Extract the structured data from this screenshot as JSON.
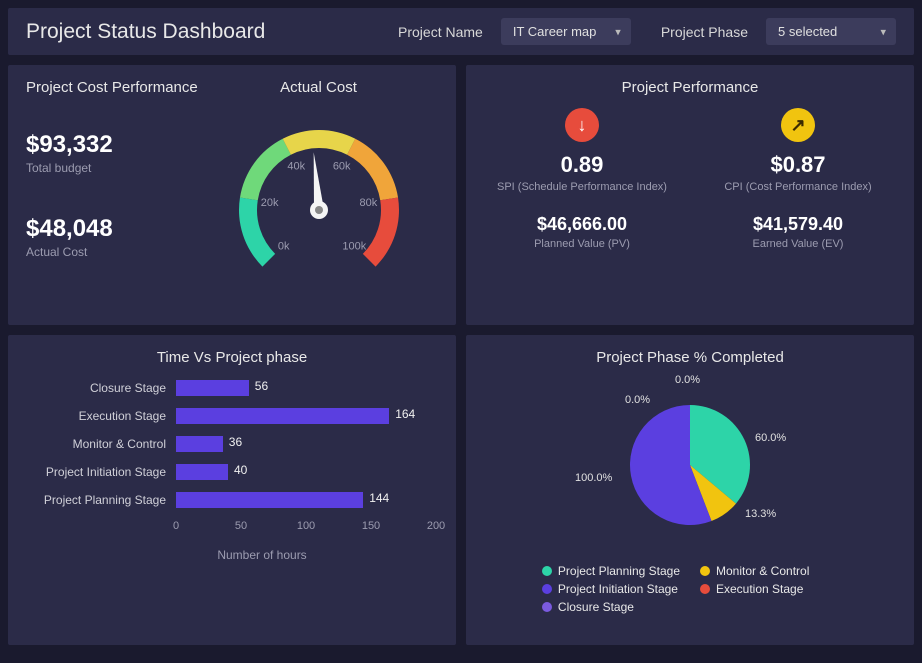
{
  "header": {
    "title": "Project Status Dashboard",
    "filter1_label": "Project Name",
    "filter1_value": "IT Career map",
    "filter2_label": "Project Phase",
    "filter2_value": "5 selected"
  },
  "cost_panel": {
    "title": "Project Cost Performance",
    "gauge_title": "Actual Cost",
    "total_budget_value": "$93,332",
    "total_budget_label": "Total budget",
    "actual_cost_value": "$48,048",
    "actual_cost_label": "Actual Cost",
    "gauge": {
      "min": 0,
      "max": 100000,
      "value": 48048,
      "ticks": [
        "0k",
        "20k",
        "40k",
        "60k",
        "80k",
        "100k"
      ],
      "colors": [
        "#2dd4a8",
        "#6fd97a",
        "#e7d54a",
        "#f0a53a",
        "#e74c3c"
      ],
      "start_angle": -225,
      "end_angle": 45
    }
  },
  "performance_panel": {
    "title": "Project Performance",
    "spi": {
      "icon": "down",
      "value": "0.89",
      "label": "SPI (Schedule Performance Index)",
      "secondary_value": "$46,666.00",
      "secondary_label": "Planned Value (PV)"
    },
    "cpi": {
      "icon": "up",
      "value": "$0.87",
      "label": "CPI (Cost Performance Index)",
      "secondary_value": "$41,579.40",
      "secondary_label": "Earned Value (EV)"
    }
  },
  "bar_panel": {
    "title": "Time Vs Project phase",
    "x_label": "Number of hours",
    "x_max": 200,
    "x_ticks": [
      0,
      50,
      100,
      150,
      200
    ],
    "bar_color": "#5b3fe0",
    "series": [
      {
        "label": "Closure Stage",
        "value": 56
      },
      {
        "label": "Execution Stage",
        "value": 164
      },
      {
        "label": "Monitor & Control",
        "value": 36
      },
      {
        "label": "Project Initiation Stage",
        "value": 40
      },
      {
        "label": "Project Planning Stage",
        "value": 144
      }
    ]
  },
  "pie_panel": {
    "title": "Project Phase % Completed",
    "slices": [
      {
        "label": "Project Planning Stage",
        "pct": 60.0,
        "color": "#2dd4a8",
        "show_label": "60.0%"
      },
      {
        "label": "Monitor & Control",
        "pct": 13.3,
        "color": "#f1c40f",
        "show_label": "13.3%"
      },
      {
        "label": "Project Initiation Stage",
        "pct": 100.0,
        "color": "#5b3fe0",
        "show_label": "100.0%",
        "note": "shown as remainder slice"
      },
      {
        "label": "Execution Stage",
        "pct": 0.0,
        "color": "#e74c3c",
        "show_label": "0.0%"
      },
      {
        "label": "Closure Stage",
        "pct": 0.0,
        "color": "#7b5be0",
        "show_label": "0.0%"
      }
    ],
    "display_slices": [
      {
        "color": "#2dd4a8",
        "angle": 130
      },
      {
        "color": "#f1c40f",
        "angle": 29
      },
      {
        "color": "#5b3fe0",
        "angle": 201
      }
    ],
    "legend": [
      {
        "label": "Project Planning Stage",
        "color": "#2dd4a8"
      },
      {
        "label": "Monitor & Control",
        "color": "#f1c40f"
      },
      {
        "label": "Project Initiation Stage",
        "color": "#5b3fe0"
      },
      {
        "label": "Execution Stage",
        "color": "#e74c3c"
      },
      {
        "label": "Closure Stage",
        "color": "#7b5be0"
      }
    ]
  }
}
